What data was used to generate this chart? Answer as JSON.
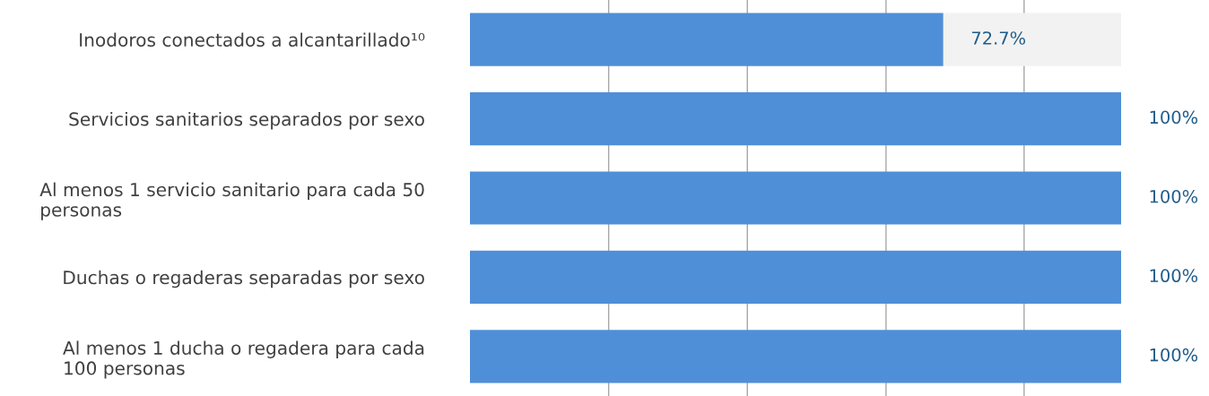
{
  "chart_data": {
    "type": "bar",
    "orientation": "horizontal",
    "stacked": true,
    "categories": [
      "Inodoros conectados a alcantarillado¹⁰",
      "Servicios sanitarios separados por sexo",
      "Al menos 1 servicio sanitario para cada 50\npersonas",
      "Duchas o regaderas separadas por sexo",
      "Al menos 1 ducha o regadera para cada\n100 personas"
    ],
    "series": [
      {
        "color": "#4f8fd8",
        "values": [
          72.7,
          100,
          100,
          100,
          100
        ],
        "value_labels": [
          "72.7%",
          "100%",
          "100%",
          "100%",
          "100%"
        ]
      },
      {
        "color": "#f2f2f2",
        "values": [
          27.3,
          0,
          0,
          0,
          0
        ]
      }
    ],
    "xlim": [
      0,
      100
    ],
    "xticks": [
      {
        "value": 21.3,
        "label": null
      },
      {
        "value": 42.6,
        "label": null
      },
      {
        "value": 63.9,
        "label": null
      },
      {
        "value": 85.1,
        "label": null
      }
    ],
    "grid": "x",
    "tick_labels": "y"
  }
}
